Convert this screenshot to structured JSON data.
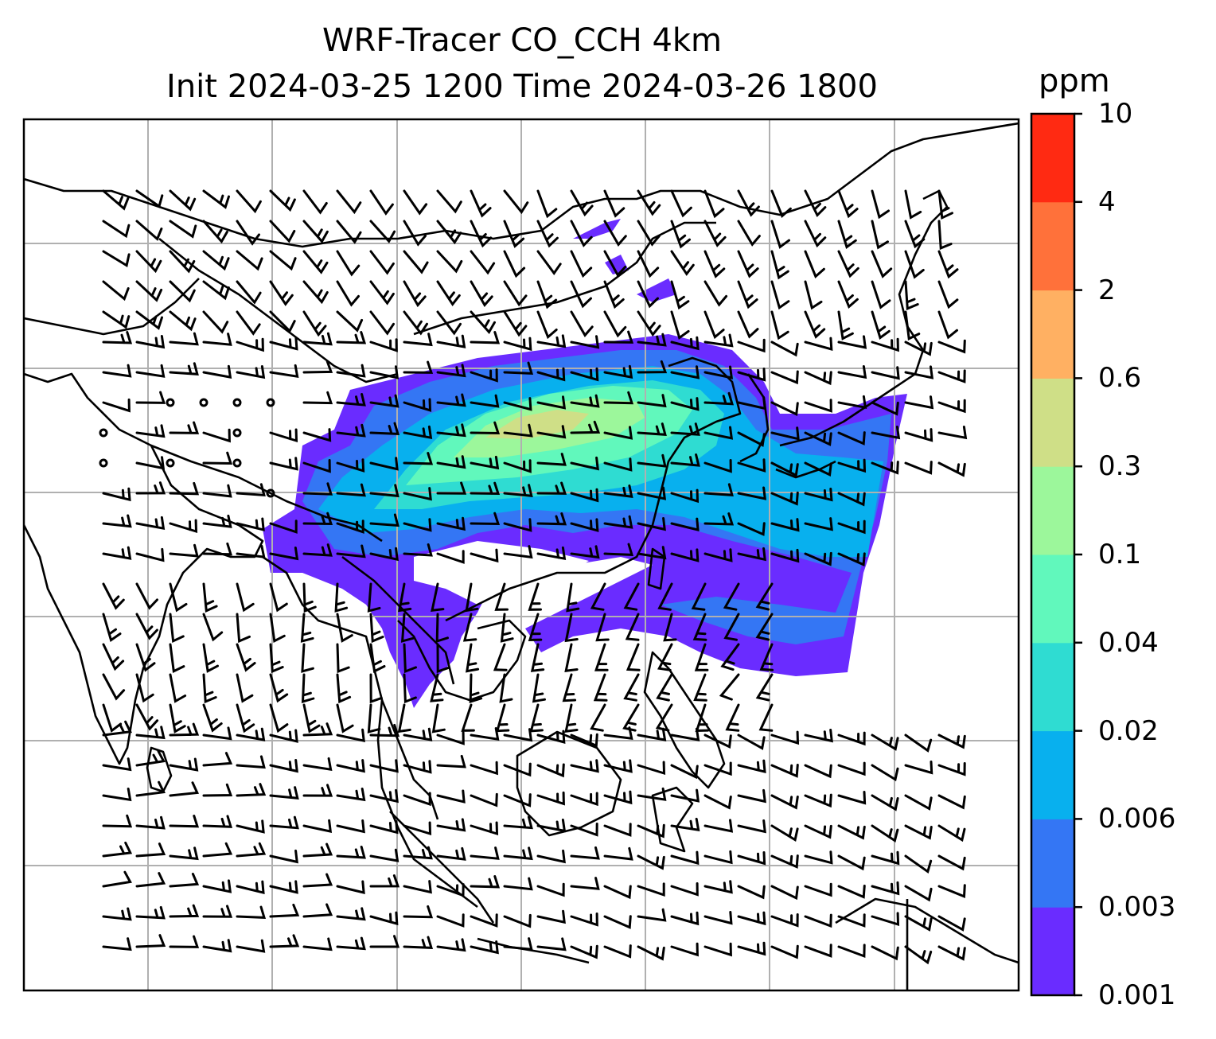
{
  "title_line1": "WRF-Tracer CO_CCH 4km",
  "title_line2": "Init 2024-03-25 1200 Time 2024-03-26 1800",
  "colorbar": {
    "unit": "ppm",
    "levels": [
      "0.001",
      "0.003",
      "0.006",
      "0.02",
      "0.04",
      "0.1",
      "0.3",
      "0.6",
      "2",
      "4",
      "10"
    ],
    "colors": [
      "#6a2cff",
      "#3476f4",
      "#08b0ee",
      "#2fdcd2",
      "#61f8bc",
      "#9cf79b",
      "#cfdf87",
      "#ffb062",
      "#ff713a",
      "#ff2a12"
    ]
  },
  "map": {
    "gridlines": true,
    "grid_color": "#b0b0b0",
    "coastline_color": "#000000",
    "wind_barbs": "black"
  }
}
